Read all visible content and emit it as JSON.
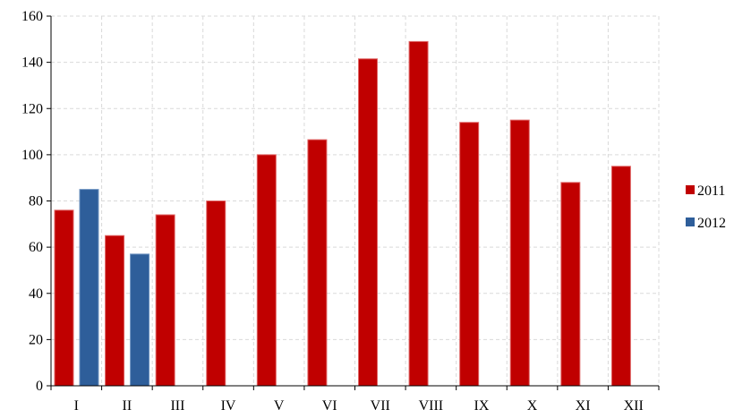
{
  "chart_data": {
    "type": "bar",
    "title": "",
    "xlabel": "",
    "ylabel": "",
    "categories": [
      "I",
      "II",
      "III",
      "IV",
      "V",
      "VI",
      "VII",
      "VIII",
      "IX",
      "X",
      "XI",
      "XII"
    ],
    "series": [
      {
        "name": "2011",
        "color": "#c00000",
        "values": [
          76,
          65,
          74,
          80,
          100,
          106.5,
          141.5,
          149,
          114,
          115,
          88,
          95
        ]
      },
      {
        "name": "2012",
        "color": "#2e5e9a",
        "values": [
          85,
          57,
          null,
          null,
          null,
          null,
          null,
          null,
          null,
          null,
          null,
          null
        ]
      }
    ],
    "ylim": [
      0,
      160
    ],
    "yticks": [
      0,
      20,
      40,
      60,
      80,
      100,
      120,
      140,
      160
    ],
    "grid": true,
    "legend": "right"
  }
}
